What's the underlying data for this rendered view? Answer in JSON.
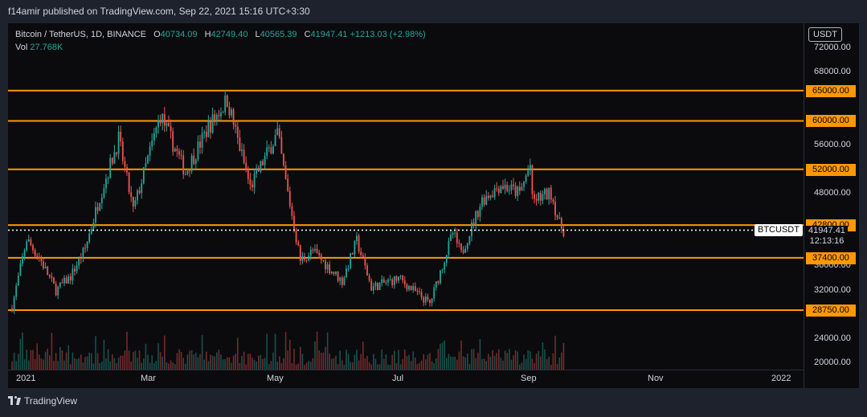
{
  "header": {
    "publisher_line": "f14amir published on TradingView.com, Sep 22, 2021 15:16 UTC+3:30"
  },
  "legend": {
    "symbol": "Bitcoin / TetherUS, 1D, BINANCE",
    "open_label": "O",
    "open": "40734.09",
    "high_label": "H",
    "high": "42749.40",
    "low_label": "L",
    "low": "40565.39",
    "close_label": "C",
    "close": "41947.41",
    "change": "+1213.03 (+2.98%)",
    "vol_label": "Vol",
    "vol": "27.768K"
  },
  "price_axis": {
    "currency": "USDT",
    "ticks": [
      "72000.00",
      "68000.00",
      "56000.00",
      "48000.00",
      "36000.00",
      "32000.00",
      "28000.00",
      "24000.00",
      "20000.00"
    ],
    "current_price": "41947.41",
    "countdown": "12:13:16",
    "symbol_badge": "BTCUSDT"
  },
  "x_axis": {
    "labels": [
      "2021",
      "Mar",
      "May",
      "Jul",
      "Sep",
      "Nov",
      "2022"
    ]
  },
  "footer": {
    "brand": "TradingView"
  },
  "colors": {
    "up": "#26a69a",
    "down": "#ef5350",
    "level": "#ff9800",
    "background": "#0b0b0e"
  },
  "chart_data": {
    "type": "candlestick",
    "title": "Bitcoin / TetherUS, 1D, BINANCE",
    "ylim": [
      20000,
      74000
    ],
    "y_ticks": [
      72000,
      68000,
      56000,
      48000,
      36000,
      32000,
      28000,
      24000,
      20000
    ],
    "horizontal_levels": [
      {
        "value": 65000,
        "label": "65000.00"
      },
      {
        "value": 60000,
        "label": "60000.00"
      },
      {
        "value": 52000,
        "label": "52000.00"
      },
      {
        "value": 42800,
        "label": "42800.00"
      },
      {
        "value": 37400,
        "label": "37400.00"
      },
      {
        "value": 28750,
        "label": "28750.00"
      }
    ],
    "current_price": 41947.41,
    "x_labels": [
      "2021",
      "Mar",
      "May",
      "Jul",
      "Sep",
      "Nov",
      "2022"
    ],
    "approx_close_path": [
      {
        "date": "2021-01-01",
        "close": 29300
      },
      {
        "date": "2021-01-08",
        "close": 40500
      },
      {
        "date": "2021-01-15",
        "close": 36800
      },
      {
        "date": "2021-01-22",
        "close": 32000
      },
      {
        "date": "2021-01-29",
        "close": 34300
      },
      {
        "date": "2021-02-05",
        "close": 38900
      },
      {
        "date": "2021-02-12",
        "close": 47500
      },
      {
        "date": "2021-02-21",
        "close": 57000
      },
      {
        "date": "2021-02-28",
        "close": 45200
      },
      {
        "date": "2021-03-13",
        "close": 61000
      },
      {
        "date": "2021-03-25",
        "close": 51500
      },
      {
        "date": "2021-04-05",
        "close": 59000
      },
      {
        "date": "2021-04-14",
        "close": 63500
      },
      {
        "date": "2021-04-25",
        "close": 49000
      },
      {
        "date": "2021-05-08",
        "close": 58000
      },
      {
        "date": "2021-05-12",
        "close": 50000
      },
      {
        "date": "2021-05-19",
        "close": 37000
      },
      {
        "date": "2021-05-25",
        "close": 38500
      },
      {
        "date": "2021-06-08",
        "close": 33500
      },
      {
        "date": "2021-06-15",
        "close": 40200
      },
      {
        "date": "2021-06-22",
        "close": 32500
      },
      {
        "date": "2021-07-05",
        "close": 34000
      },
      {
        "date": "2021-07-20",
        "close": 29800
      },
      {
        "date": "2021-07-31",
        "close": 41500
      },
      {
        "date": "2021-08-04",
        "close": 38000
      },
      {
        "date": "2021-08-14",
        "close": 47000
      },
      {
        "date": "2021-08-23",
        "close": 49500
      },
      {
        "date": "2021-09-01",
        "close": 48000
      },
      {
        "date": "2021-09-06",
        "close": 52700
      },
      {
        "date": "2021-09-07",
        "close": 46800
      },
      {
        "date": "2021-09-16",
        "close": 48100
      },
      {
        "date": "2021-09-20",
        "close": 42900
      },
      {
        "date": "2021-09-22",
        "close": 41947
      }
    ]
  }
}
